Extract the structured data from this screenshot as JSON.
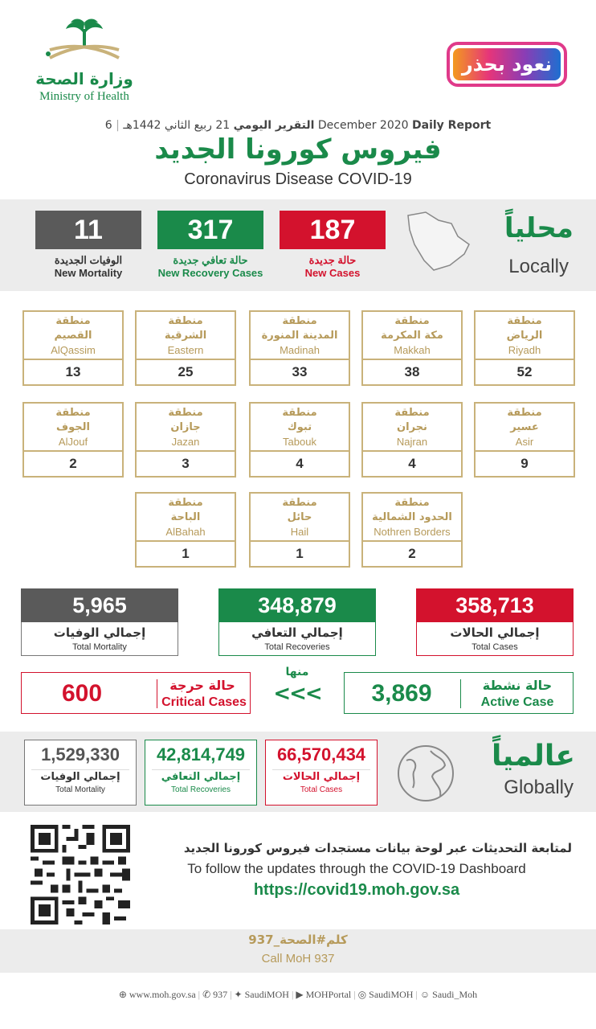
{
  "header": {
    "ministry_ar": "وزارة الصحة",
    "ministry_en": "Ministry of Health",
    "campaign": "نعود بحذر",
    "daily_ar": "التقرير اليومي",
    "hijri_date": "21 ربيع الثاني 1442هـ",
    "daily_en": "Daily Report",
    "greg_date": "6 December 2020",
    "title_ar": "فيروس كورونا الجديد",
    "title_en": "Coronavirus Disease COVID-19"
  },
  "local": {
    "title_ar": "محلياً",
    "title_en": "Locally",
    "mortality": {
      "value": "11",
      "ar": "الوفيات الجديدة",
      "en": "New Mortality"
    },
    "recovery": {
      "value": "317",
      "ar": "حالة تعافي جديدة",
      "en": "New Recovery Cases"
    },
    "cases": {
      "value": "187",
      "ar": "حالة جديدة",
      "en": "New Cases"
    }
  },
  "regions": [
    {
      "word": "منطقة",
      "ar": "الرياض",
      "en": "Riyadh",
      "count": "52"
    },
    {
      "word": "منطقة",
      "ar": "مكة المكرمة",
      "en": "Makkah",
      "count": "38"
    },
    {
      "word": "منطقة",
      "ar": "المدينة المنورة",
      "en": "Madinah",
      "count": "33"
    },
    {
      "word": "منطقة",
      "ar": "الشرقية",
      "en": "Eastern",
      "count": "25"
    },
    {
      "word": "منطقة",
      "ar": "القصيم",
      "en": "AlQassim",
      "count": "13"
    },
    {
      "word": "منطقة",
      "ar": "عسير",
      "en": "Asir",
      "count": "9"
    },
    {
      "word": "منطقة",
      "ar": "نجران",
      "en": "Najran",
      "count": "4"
    },
    {
      "word": "منطقة",
      "ar": "تبوك",
      "en": "Tabouk",
      "count": "4"
    },
    {
      "word": "منطقة",
      "ar": "جازان",
      "en": "Jazan",
      "count": "3"
    },
    {
      "word": "منطقة",
      "ar": "الجوف",
      "en": "AlJouf",
      "count": "2"
    },
    {
      "word": "منطقة",
      "ar": "الحدود الشمالية",
      "en": "Nothren Borders",
      "count": "2"
    },
    {
      "word": "منطقة",
      "ar": "حائل",
      "en": "Hail",
      "count": "1"
    },
    {
      "word": "منطقة",
      "ar": "الباحة",
      "en": "AlBahah",
      "count": "1"
    }
  ],
  "totals": {
    "mortality": {
      "value": "5,965",
      "ar": "إجمالي الوفيات",
      "en": "Total Mortality"
    },
    "recoveries": {
      "value": "348,879",
      "ar": "إجمالي التعافي",
      "en": "Total Recoveries"
    },
    "cases": {
      "value": "358,713",
      "ar": "إجمالي الحالات",
      "en": "Total Cases"
    }
  },
  "status": {
    "critical_value": "600",
    "critical_ar": "حالة حرجة",
    "critical_en": "Critical Cases",
    "of_which": "منها",
    "arrows": "<<<",
    "active_value": "3,869",
    "active_ar": "حالة نشطة",
    "active_en": "Active Case"
  },
  "global": {
    "title_ar": "عالمياً",
    "title_en": "Globally",
    "mortality": {
      "value": "1,529,330",
      "ar": "إجمالي الوفيات",
      "en": "Total Mortality"
    },
    "recoveries": {
      "value": "42,814,749",
      "ar": "إجمالي التعافي",
      "en": "Total Recoveries"
    },
    "cases": {
      "value": "66,570,434",
      "ar": "إجمالي الحالات",
      "en": "Total Cases"
    }
  },
  "dashboard": {
    "ar": "لمتابعة التحديثات عبر لوحة بيانات مستجدات فيروس كورونا الجديد",
    "en": "To follow the updates through the COVID-19 Dashboard",
    "url": "https://covid19.moh.gov.sa"
  },
  "call": {
    "ar": "كلم#الصحة_937",
    "en": "Call MoH 937"
  },
  "footer": {
    "web": "www.moh.gov.sa",
    "phone": "937",
    "twitter": "SaudiMOH",
    "youtube": "MOHPortal",
    "instagram": "SaudiMOH",
    "snapchat": "Saudi_Moh"
  },
  "colors": {
    "green": "#1a8a4a",
    "red": "#d3122d",
    "gray": "#5a5a5a",
    "gold": "#c9b27a"
  }
}
